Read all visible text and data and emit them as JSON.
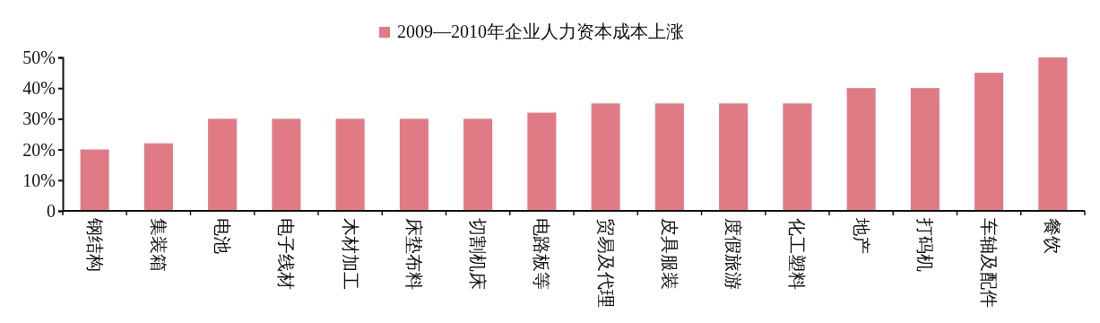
{
  "chart_data": {
    "type": "bar",
    "categories": [
      "钢结构",
      "集装箱",
      "电池",
      "电子线材",
      "木材加工",
      "床垫布料",
      "切割机床",
      "电路板等",
      "贸易及代理",
      "皮具服装",
      "度假旅游",
      "化工塑料",
      "地产",
      "打码机",
      "车轴及配件",
      "餐饮"
    ],
    "series": [
      {
        "name": "2009—2010年企业人力资本成本上涨",
        "color": "#e07b86",
        "values": [
          20,
          22,
          30,
          30,
          30,
          30,
          30,
          32,
          35,
          35,
          35,
          35,
          40,
          40,
          45,
          50
        ]
      }
    ],
    "ylim": [
      0,
      50
    ],
    "yticks": [
      0,
      {
        "value": 10,
        "label": "10%"
      },
      {
        "value": 20,
        "label": "20%"
      },
      {
        "value": 30,
        "label": "30%"
      },
      {
        "value": 40,
        "label": "40%"
      },
      {
        "value": 50,
        "label": "50%"
      }
    ],
    "legend": "top",
    "grid": false
  }
}
